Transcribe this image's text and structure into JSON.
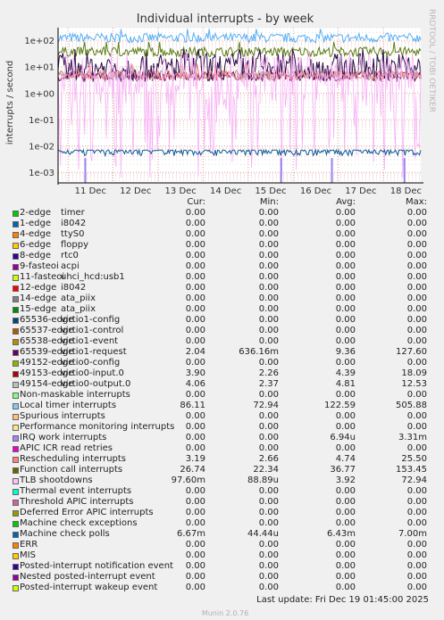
{
  "chart_data": {
    "type": "line",
    "title": "Individual interrupts - by week",
    "ylabel": "interrupts / second",
    "yscale": "log",
    "ylim": [
      0.0004,
      300
    ],
    "y_ticks": [
      "1e+02",
      "1e+01",
      "1e+00",
      "1e-01",
      "1e-02",
      "1e-03"
    ],
    "x_ticks": [
      "11 Dec",
      "12 Dec",
      "13 Dec",
      "14 Dec",
      "15 Dec",
      "16 Dec",
      "17 Dec",
      "18 Dec"
    ],
    "grid": true,
    "series_levels": [
      {
        "name": "Local timer interrupts",
        "color": "#56aff3",
        "center": 122.59,
        "low": 72.94,
        "high": 505.88
      },
      {
        "name": "Function call interrupts",
        "color": "#5a7d14",
        "center": 36.77,
        "low": 22.34,
        "high": 153.45
      },
      {
        "name": "49154-edge virtio0-output.0",
        "color": "#9e9e9e",
        "center": 4.81,
        "low": 2.37,
        "high": 12.53
      },
      {
        "name": "49153-edge virtio0-input.0",
        "color": "#7a0f5e",
        "center": 4.39,
        "low": 2.26,
        "high": 18.09
      },
      {
        "name": "65539-edge virtio1-request",
        "color": "#2a0c44",
        "center": 9.36,
        "low": 0.636,
        "high": 127.6
      },
      {
        "name": "Rescheduling interrupts",
        "color": "#ef8585",
        "center": 4.74,
        "low": 2.66,
        "high": 25.5
      },
      {
        "name": "TLB shootdowns",
        "color": "#f7b1f7",
        "center": 3.92,
        "low": 8.89e-05,
        "high": 72.94
      },
      {
        "name": "Machine check polls",
        "color": "#0b5a94",
        "center": 0.00643,
        "low": 4.44e-05,
        "high": 0.007
      }
    ]
  },
  "side_text": "RRDTOOL / TOBI OETIKER",
  "munin_version": "Munin 2.0.76",
  "legend": {
    "headers": {
      "cur": "Cur:",
      "min": "Min:",
      "avg": "Avg:",
      "max": "Max:"
    },
    "rows": [
      {
        "name": "2-edge",
        "desc": "timer",
        "color": "#00cc00",
        "cur": "0.00",
        "min": "0.00",
        "avg": "0.00",
        "max": "0.00"
      },
      {
        "name": "1-edge",
        "desc": "i8042",
        "color": "#0066b3",
        "cur": "0.00",
        "min": "0.00",
        "avg": "0.00",
        "max": "0.00"
      },
      {
        "name": "4-edge",
        "desc": "ttyS0",
        "color": "#ff8000",
        "cur": "0.00",
        "min": "0.00",
        "avg": "0.00",
        "max": "0.00"
      },
      {
        "name": "6-edge",
        "desc": "floppy",
        "color": "#ffcc00",
        "cur": "0.00",
        "min": "0.00",
        "avg": "0.00",
        "max": "0.00"
      },
      {
        "name": "8-edge",
        "desc": "rtc0",
        "color": "#330099",
        "cur": "0.00",
        "min": "0.00",
        "avg": "0.00",
        "max": "0.00"
      },
      {
        "name": "9-fasteoi",
        "desc": "acpi",
        "color": "#990099",
        "cur": "0.00",
        "min": "0.00",
        "avg": "0.00",
        "max": "0.00"
      },
      {
        "name": "11-fasteoi",
        "desc": "uhci_hcd:usb1",
        "color": "#ccff00",
        "cur": "0.00",
        "min": "0.00",
        "avg": "0.00",
        "max": "0.00"
      },
      {
        "name": "12-edge",
        "desc": "i8042",
        "color": "#ff0000",
        "cur": "0.00",
        "min": "0.00",
        "avg": "0.00",
        "max": "0.00"
      },
      {
        "name": "14-edge",
        "desc": "ata_piix",
        "color": "#808080",
        "cur": "0.00",
        "min": "0.00",
        "avg": "0.00",
        "max": "0.00"
      },
      {
        "name": "15-edge",
        "desc": "ata_piix",
        "color": "#008f00",
        "cur": "0.00",
        "min": "0.00",
        "avg": "0.00",
        "max": "0.00"
      },
      {
        "name": "65536-edge",
        "desc": "virtio1-config",
        "color": "#00487d",
        "cur": "0.00",
        "min": "0.00",
        "avg": "0.00",
        "max": "0.00"
      },
      {
        "name": "65537-edge",
        "desc": "virtio1-control",
        "color": "#b35a00",
        "cur": "0.00",
        "min": "0.00",
        "avg": "0.00",
        "max": "0.00"
      },
      {
        "name": "65538-edge",
        "desc": "virtio1-event",
        "color": "#b38f00",
        "cur": "0.00",
        "min": "0.00",
        "avg": "0.00",
        "max": "0.00"
      },
      {
        "name": "65539-edge",
        "desc": "virtio1-request",
        "color": "#6b006b",
        "cur": "2.04",
        "min": "636.16m",
        "avg": "9.36",
        "max": "127.60"
      },
      {
        "name": "49152-edge",
        "desc": "virtio0-config",
        "color": "#8fb300",
        "cur": "0.00",
        "min": "0.00",
        "avg": "0.00",
        "max": "0.00"
      },
      {
        "name": "49153-edge",
        "desc": "virtio0-input.0",
        "color": "#b30000",
        "cur": "3.90",
        "min": "2.26",
        "avg": "4.39",
        "max": "18.09"
      },
      {
        "name": "49154-edge",
        "desc": "virtio0-output.0",
        "color": "#bebebe",
        "cur": "4.06",
        "min": "2.37",
        "avg": "4.81",
        "max": "12.53"
      },
      {
        "name": "Non-maskable interrupts",
        "desc": "",
        "color": "#80ff80",
        "cur": "0.00",
        "min": "0.00",
        "avg": "0.00",
        "max": "0.00"
      },
      {
        "name": "Local timer interrupts",
        "desc": "",
        "color": "#80c9ff",
        "cur": "86.11",
        "min": "72.94",
        "avg": "122.59",
        "max": "505.88"
      },
      {
        "name": "Spurious interrupts",
        "desc": "",
        "color": "#ffc080",
        "cur": "0.00",
        "min": "0.00",
        "avg": "0.00",
        "max": "0.00"
      },
      {
        "name": "Performance monitoring interrupts",
        "desc": "",
        "color": "#ffe680",
        "cur": "0.00",
        "min": "0.00",
        "avg": "0.00",
        "max": "0.00"
      },
      {
        "name": "IRQ work interrupts",
        "desc": "",
        "color": "#aa80ff",
        "cur": "0.00",
        "min": "0.00",
        "avg": "6.94u",
        "max": "3.31m"
      },
      {
        "name": "APIC ICR read retries",
        "desc": "",
        "color": "#ee00cc",
        "cur": "0.00",
        "min": "0.00",
        "avg": "0.00",
        "max": "0.00"
      },
      {
        "name": "Rescheduling interrupts",
        "desc": "",
        "color": "#ff8080",
        "cur": "3.19",
        "min": "2.66",
        "avg": "4.74",
        "max": "25.50"
      },
      {
        "name": "Function call interrupts",
        "desc": "",
        "color": "#666600",
        "cur": "26.74",
        "min": "22.34",
        "avg": "36.77",
        "max": "153.45"
      },
      {
        "name": "TLB shootdowns",
        "desc": "",
        "color": "#ffbfff",
        "cur": "97.60m",
        "min": "88.89u",
        "avg": "3.92",
        "max": "72.94"
      },
      {
        "name": "Thermal event interrupts",
        "desc": "",
        "color": "#00ffcc",
        "cur": "0.00",
        "min": "0.00",
        "avg": "0.00",
        "max": "0.00"
      },
      {
        "name": "Threshold APIC interrupts",
        "desc": "",
        "color": "#cc6699",
        "cur": "0.00",
        "min": "0.00",
        "avg": "0.00",
        "max": "0.00"
      },
      {
        "name": "Deferred Error APIC interrupts",
        "desc": "",
        "color": "#999900",
        "cur": "0.00",
        "min": "0.00",
        "avg": "0.00",
        "max": "0.00"
      },
      {
        "name": "Machine check exceptions",
        "desc": "",
        "color": "#00cc00",
        "cur": "0.00",
        "min": "0.00",
        "avg": "0.00",
        "max": "0.00"
      },
      {
        "name": "Machine check polls",
        "desc": "",
        "color": "#0066b3",
        "cur": "6.67m",
        "min": "44.44u",
        "avg": "6.43m",
        "max": "7.00m"
      },
      {
        "name": "ERR",
        "desc": "",
        "color": "#ff8000",
        "cur": "0.00",
        "min": "0.00",
        "avg": "0.00",
        "max": "0.00"
      },
      {
        "name": "MIS",
        "desc": "",
        "color": "#ffcc00",
        "cur": "0.00",
        "min": "0.00",
        "avg": "0.00",
        "max": "0.00"
      },
      {
        "name": "Posted-interrupt notification event",
        "desc": "",
        "color": "#330099",
        "cur": "0.00",
        "min": "0.00",
        "avg": "0.00",
        "max": "0.00"
      },
      {
        "name": "Nested posted-interrupt event",
        "desc": "",
        "color": "#990099",
        "cur": "0.00",
        "min": "0.00",
        "avg": "0.00",
        "max": "0.00"
      },
      {
        "name": "Posted-interrupt wakeup event",
        "desc": "",
        "color": "#ccff00",
        "cur": "0.00",
        "min": "0.00",
        "avg": "0.00",
        "max": "0.00"
      }
    ]
  },
  "footer": {
    "last_update": "Last update: Fri Dec 19 01:45:00 2025"
  }
}
